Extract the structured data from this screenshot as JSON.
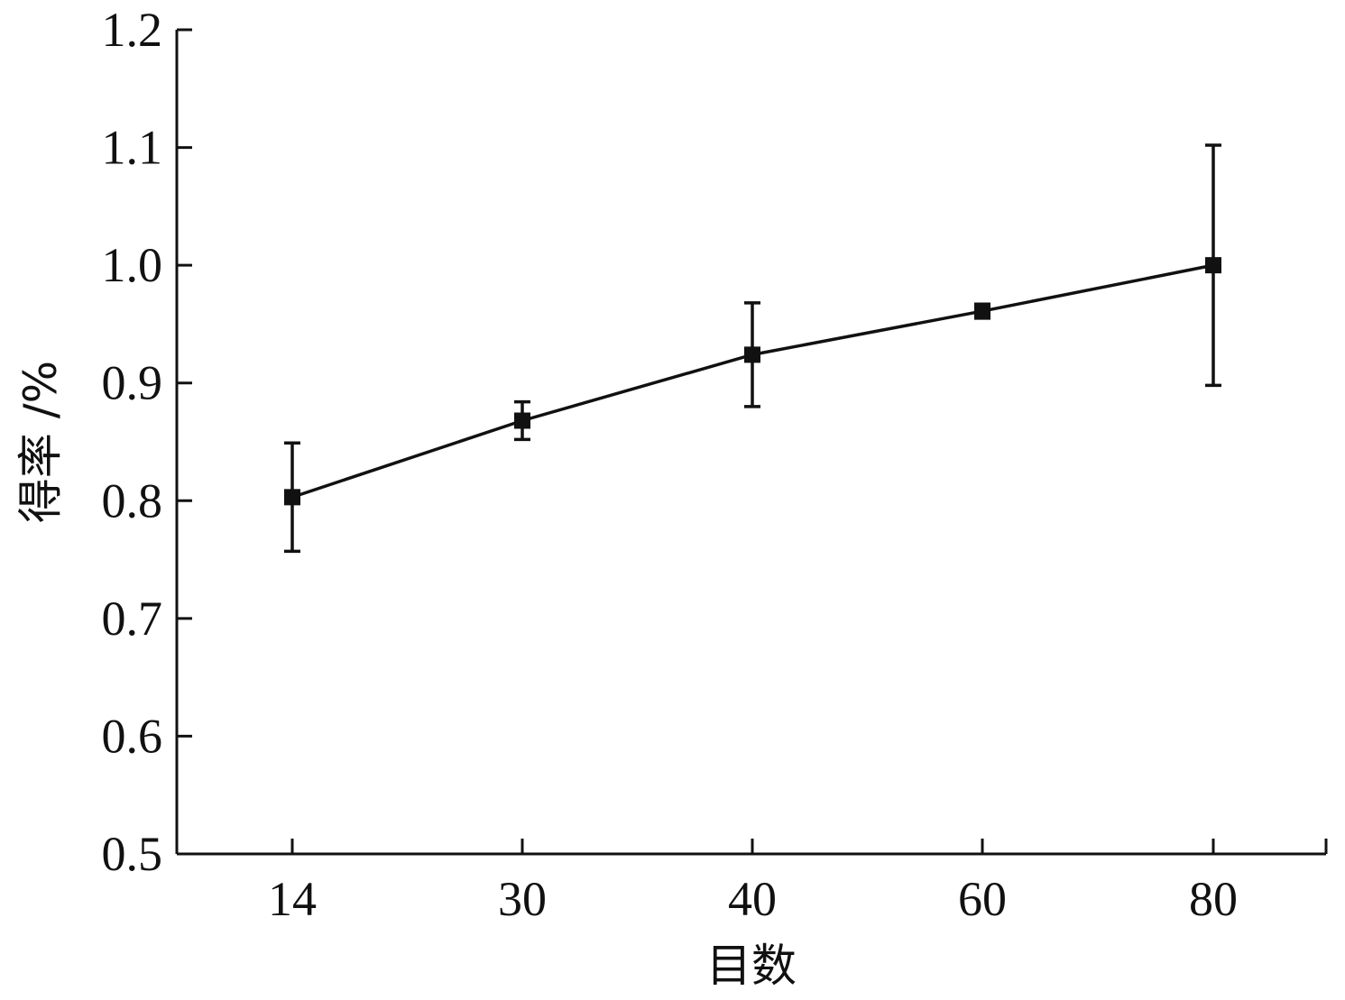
{
  "chart_data": {
    "type": "line",
    "title": "",
    "xlabel": "目数",
    "ylabel": "得率 /%",
    "categories": [
      "14",
      "30",
      "40",
      "60",
      "80"
    ],
    "series": [
      {
        "values": [
          0.803,
          0.868,
          0.924,
          0.961,
          1.0
        ],
        "error": [
          0.046,
          0.016,
          0.044,
          0.006,
          0.102
        ]
      }
    ],
    "ylim": [
      0.5,
      1.2
    ],
    "yticks": [
      "0.5",
      "0.6",
      "0.7",
      "0.8",
      "0.9",
      "1.0",
      "1.1",
      "1.2"
    ],
    "grid": false,
    "colors": {
      "line": "#111111",
      "marker": "#111111",
      "axis": "#111111"
    }
  }
}
